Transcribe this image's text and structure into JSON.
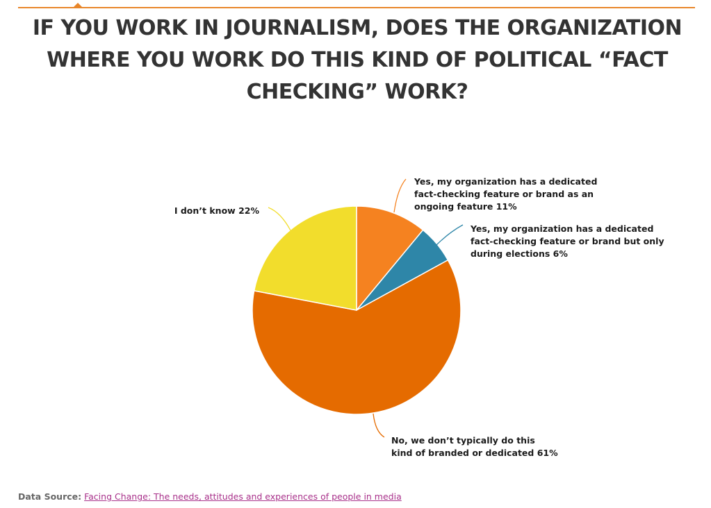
{
  "title": "IF YOU WORK IN JOURNALISM, DOES THE ORGANIZATION WHERE YOU WORK DO THIS KIND OF POLITICAL “FACT CHECKING” WORK?",
  "footer": {
    "source_label": "Data Source:",
    "source_link_text": "Facing Change: The needs, attitudes and experiences of people in media"
  },
  "chart_data": {
    "type": "pie",
    "title": "IF YOU WORK IN JOURNALISM, DOES THE ORGANIZATION WHERE YOU WORK DO THIS KIND OF POLITICAL “FACT CHECKING” WORK?",
    "slices": [
      {
        "label": "Yes, my organization has a dedicated fact-checking feature or brand as an ongoing feature",
        "value": 11,
        "color": "#f58220",
        "label_lines": [
          "Yes, my organization has a dedicated",
          "fact-checking feature or brand as an",
          "ongoing feature 11%"
        ]
      },
      {
        "label": "Yes, my organization has a dedicated fact-checking feature or brand but only during elections",
        "value": 6,
        "color": "#2e86a8",
        "label_lines": [
          "Yes, my organization has a dedicated",
          "fact-checking feature or brand but only",
          "during elections 6%"
        ]
      },
      {
        "label": "No, we don’t typically do this kind of branded or dedicated",
        "value": 61,
        "color": "#e56b00",
        "label_lines": [
          "No, we don’t typically do this",
          "kind of branded or dedicated 61%"
        ]
      },
      {
        "label": "I don’t know",
        "value": 22,
        "color": "#f2dd2c",
        "label_lines": [
          "I don’t know 22%"
        ]
      }
    ],
    "legend": "none"
  }
}
